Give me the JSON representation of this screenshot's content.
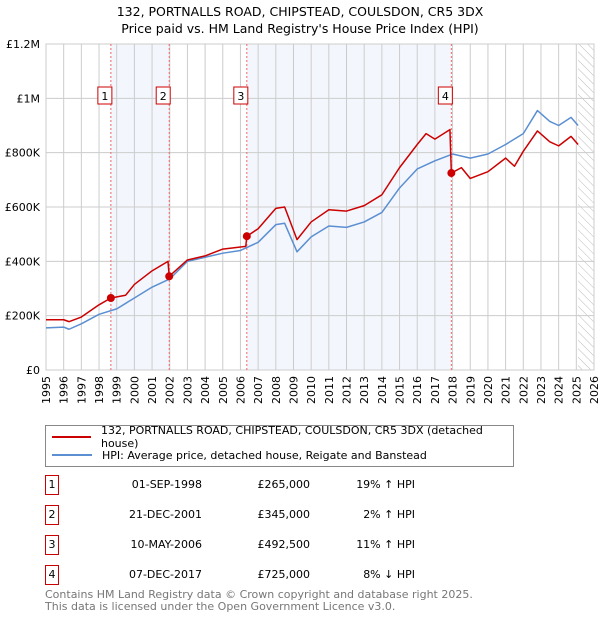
{
  "chart_data": {
    "type": "line",
    "title": "132, PORTNALLS ROAD, CHIPSTEAD, COULSDON, CR5 3DX",
    "subtitle": "Price paid vs. HM Land Registry's House Price Index (HPI)",
    "xlim": [
      1995,
      2026
    ],
    "ylim": [
      0,
      1200000
    ],
    "y_ticks": [
      {
        "v": 0,
        "label": "£0"
      },
      {
        "v": 200000,
        "label": "£200K"
      },
      {
        "v": 400000,
        "label": "£400K"
      },
      {
        "v": 600000,
        "label": "£600K"
      },
      {
        "v": 800000,
        "label": "£800K"
      },
      {
        "v": 1000000,
        "label": "£1M"
      },
      {
        "v": 1200000,
        "label": "£1.2M"
      }
    ],
    "x_ticks": [
      "1995",
      "1996",
      "1997",
      "1998",
      "1999",
      "2000",
      "2001",
      "2002",
      "2003",
      "2004",
      "2005",
      "2006",
      "2007",
      "2008",
      "2009",
      "2010",
      "2011",
      "2012",
      "2013",
      "2014",
      "2015",
      "2016",
      "2017",
      "2018",
      "2019",
      "2020",
      "2021",
      "2022",
      "2023",
      "2024",
      "2025",
      "2026"
    ],
    "grid": true,
    "forecast_from": 2025.1,
    "series": [
      {
        "name": "132, PORTNALLS ROAD, CHIPSTEAD, COULSDON, CR5 3DX (detached house)",
        "color": "#cc0000",
        "x": [
          1995,
          1996,
          1996.3,
          1997,
          1998,
          1998.67,
          1999.5,
          2000,
          2001,
          2001.9,
          2001.97,
          2003,
          2004,
          2005,
          2006.3,
          2006.36,
          2007,
          2008,
          2008.5,
          2009.2,
          2010,
          2011,
          2012,
          2013,
          2014,
          2015,
          2016,
          2016.5,
          2017,
          2017.85,
          2017.93,
          2018.5,
          2019,
          2020,
          2021,
          2021.5,
          2022,
          2022.8,
          2023.5,
          2024,
          2024.7,
          2025.1
        ],
        "y": [
          185000,
          185000,
          178000,
          195000,
          240000,
          265000,
          275000,
          315000,
          365000,
          400000,
          345000,
          405000,
          420000,
          445000,
          455000,
          492500,
          520000,
          595000,
          600000,
          480000,
          545000,
          590000,
          585000,
          605000,
          645000,
          745000,
          830000,
          870000,
          850000,
          885000,
          725000,
          745000,
          705000,
          730000,
          780000,
          750000,
          805000,
          880000,
          840000,
          825000,
          860000,
          830000
        ]
      },
      {
        "name": "HPI: Average price, detached house, Reigate and Banstead",
        "color": "#5b8fd1",
        "x": [
          1995,
          1996,
          1996.3,
          1997,
          1998,
          1999,
          2000,
          2001,
          2002,
          2003,
          2004,
          2005,
          2006,
          2007,
          2008,
          2008.5,
          2009.2,
          2010,
          2011,
          2012,
          2013,
          2014,
          2015,
          2016,
          2017,
          2018,
          2019,
          2020,
          2021,
          2022,
          2022.8,
          2023.5,
          2024,
          2024.7,
          2025.1
        ],
        "y": [
          155000,
          158000,
          150000,
          170000,
          205000,
          225000,
          265000,
          305000,
          335000,
          400000,
          415000,
          430000,
          440000,
          470000,
          535000,
          540000,
          435000,
          490000,
          530000,
          525000,
          545000,
          580000,
          670000,
          740000,
          770000,
          795000,
          780000,
          795000,
          830000,
          870000,
          955000,
          915000,
          900000,
          930000,
          900000
        ]
      }
    ],
    "sales": [
      {
        "n": "1",
        "x": 1998.67,
        "date": "01-SEP-1998",
        "price": 265000,
        "price_label": "£265,000",
        "hpi": "19% ↑ HPI"
      },
      {
        "n": "2",
        "x": 2001.97,
        "date": "21-DEC-2001",
        "price": 345000,
        "price_label": "£345,000",
        "hpi": "2% ↑ HPI"
      },
      {
        "n": "3",
        "x": 2006.36,
        "date": "10-MAY-2006",
        "price": 492500,
        "price_label": "£492,500",
        "hpi": "11% ↑ HPI"
      },
      {
        "n": "4",
        "x": 2017.93,
        "date": "07-DEC-2017",
        "price": 725000,
        "price_label": "£725,000",
        "hpi": "8% ↓ HPI"
      }
    ],
    "legend_position": "below"
  },
  "footer": {
    "line1": "Contains HM Land Registry data © Crown copyright and database right 2025.",
    "line2": "This data is licensed under the Open Government Licence v3.0."
  }
}
